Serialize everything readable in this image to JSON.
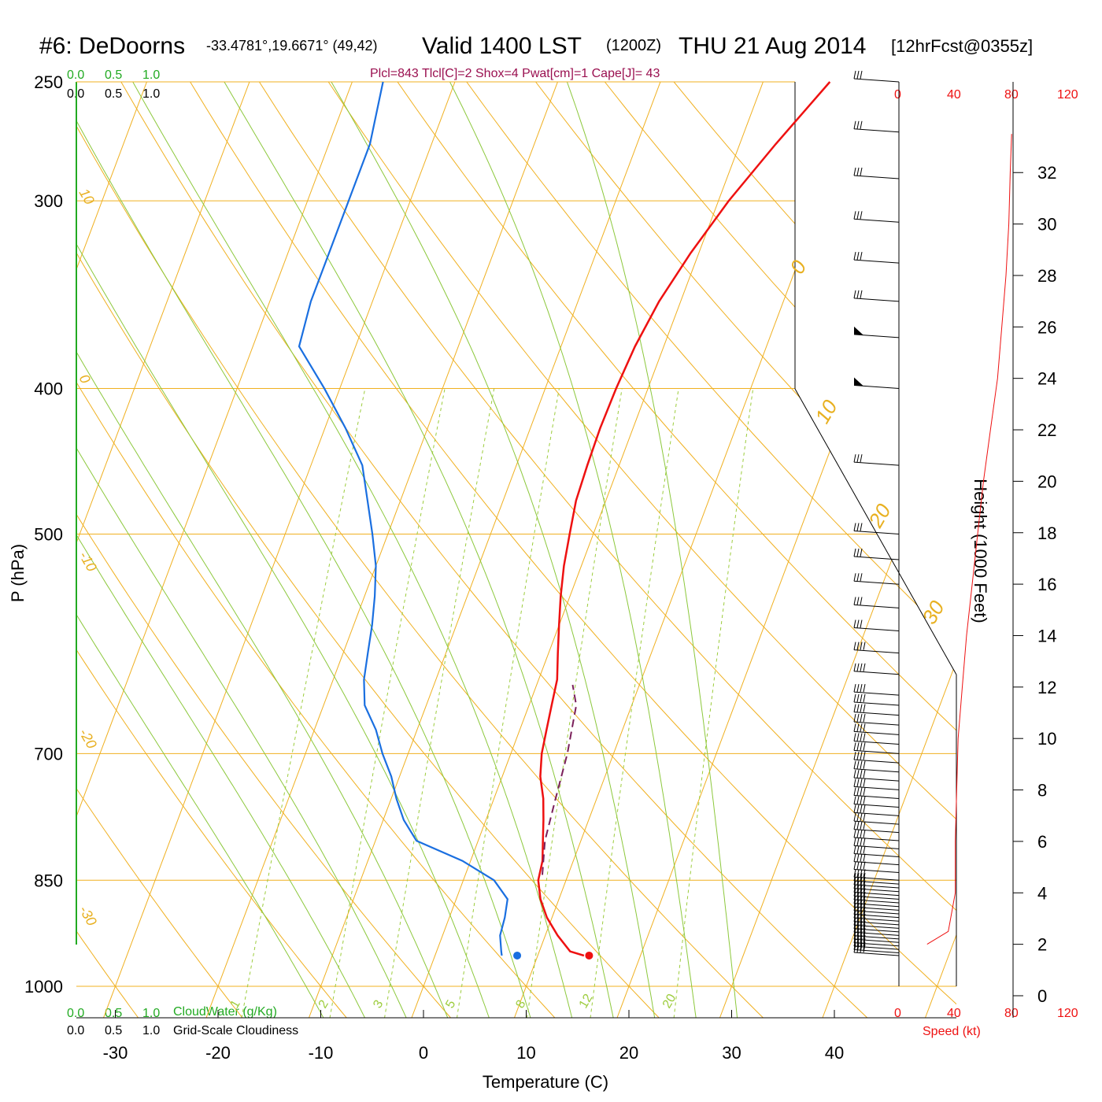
{
  "title": {
    "station": "#6: DeDoorns",
    "coords": "-33.4781°,19.6671° (49,42)",
    "valid_main": "Valid 1400 LST",
    "valid_utc": "(1200Z)",
    "date": "THU 21 Aug 2014",
    "forecast": "[12hrFcst@0355z]"
  },
  "indices": "Plcl=843 Tlcl[C]=2 Shox=4 Pwat[cm]=1 Cape[J]= 43",
  "cloud_scale_top": {
    "green": [
      "0.0",
      "0.5",
      "1.0"
    ],
    "black": [
      "0.0",
      "0.5",
      "1.0"
    ]
  },
  "cloud_scale_bottom": {
    "green": [
      "0.0",
      "0.5",
      "1.0"
    ],
    "green_label": "CloudWater (g/Kg)",
    "black": [
      "0.0",
      "0.5",
      "1.0"
    ],
    "black_label": "Grid-Scale Cloudiness"
  },
  "speed_axis": {
    "ticks_top": [
      "0",
      "40",
      "80",
      "120"
    ],
    "ticks_bottom": [
      "0",
      "40",
      "80",
      "120"
    ],
    "label": "Speed (kt)"
  },
  "colors": {
    "temperature": "#ee1111",
    "dewpoint": "#1a6fe0",
    "isotherm": "#f0b020",
    "dry_adiabat": "#f0b020",
    "moist_adiabat": "#8cc83c",
    "mixing_ratio": "#9ccc3c",
    "parcel": "#7a1f5a",
    "indices_text": "#9a1050",
    "cloud_green": "#22aa22",
    "speed_red": "#ee1111"
  },
  "chart_data": {
    "type": "skew-t",
    "xlabel": "Temperature (C)",
    "ylabel": "P (hPa)",
    "x_ticks": [
      -30,
      -20,
      -10,
      0,
      10,
      20,
      30,
      40
    ],
    "p_ticks": [
      250,
      300,
      400,
      500,
      700,
      850,
      1000
    ],
    "height_label": "Height (1000 Feet)",
    "height_ticks": [
      0,
      2,
      4,
      6,
      8,
      10,
      12,
      14,
      16,
      18,
      20,
      22,
      24,
      26,
      28,
      30,
      32
    ],
    "isotherm_labels": [
      "10",
      "0",
      "-10",
      "-20",
      "-30"
    ],
    "theta_labels": [
      "0",
      "10",
      "20",
      "30"
    ],
    "mixing_ratio_labels": [
      "1",
      "2",
      "3",
      "5",
      "8",
      "12",
      "20"
    ],
    "mixing_ratios": [
      1,
      2,
      3,
      5,
      8,
      12,
      20
    ],
    "temperature": [
      {
        "p": 954,
        "t": 14.5
      },
      {
        "p": 948,
        "t": 13.0
      },
      {
        "p": 925,
        "t": 11.2
      },
      {
        "p": 900,
        "t": 9.5
      },
      {
        "p": 875,
        "t": 8.2
      },
      {
        "p": 850,
        "t": 7.3
      },
      {
        "p": 825,
        "t": 7.0
      },
      {
        "p": 800,
        "t": 6.3
      },
      {
        "p": 775,
        "t": 5.6
      },
      {
        "p": 750,
        "t": 4.8
      },
      {
        "p": 725,
        "t": 3.7
      },
      {
        "p": 700,
        "t": 3.0
      },
      {
        "p": 675,
        "t": 2.6
      },
      {
        "p": 650,
        "t": 2.2
      },
      {
        "p": 625,
        "t": 1.8
      },
      {
        "p": 600,
        "t": 0.9
      },
      {
        "p": 575,
        "t": 0.0
      },
      {
        "p": 550,
        "t": -0.9
      },
      {
        "p": 525,
        "t": -1.7
      },
      {
        "p": 500,
        "t": -2.3
      },
      {
        "p": 475,
        "t": -2.9
      },
      {
        "p": 450,
        "t": -3.1
      },
      {
        "p": 425,
        "t": -3.2
      },
      {
        "p": 400,
        "t": -3.1
      },
      {
        "p": 375,
        "t": -2.8
      },
      {
        "p": 350,
        "t": -2.1
      },
      {
        "p": 325,
        "t": -0.8
      },
      {
        "p": 300,
        "t": 1.0
      },
      {
        "p": 275,
        "t": 3.5
      },
      {
        "p": 250,
        "t": 6.5
      }
    ],
    "dewpoint": [
      {
        "p": 954,
        "t": 6.5
      },
      {
        "p": 948,
        "t": 6.3
      },
      {
        "p": 925,
        "t": 5.6
      },
      {
        "p": 900,
        "t": 5.4
      },
      {
        "p": 875,
        "t": 5.0
      },
      {
        "p": 850,
        "t": 3.0
      },
      {
        "p": 825,
        "t": -0.8
      },
      {
        "p": 800,
        "t": -6.0
      },
      {
        "p": 775,
        "t": -8.0
      },
      {
        "p": 750,
        "t": -9.5
      },
      {
        "p": 725,
        "t": -10.8
      },
      {
        "p": 700,
        "t": -12.5
      },
      {
        "p": 675,
        "t": -14.0
      },
      {
        "p": 650,
        "t": -16.0
      },
      {
        "p": 625,
        "t": -17.0
      },
      {
        "p": 600,
        "t": -17.6
      },
      {
        "p": 575,
        "t": -18.2
      },
      {
        "p": 550,
        "t": -19.0
      },
      {
        "p": 525,
        "t": -20.0
      },
      {
        "p": 500,
        "t": -21.5
      },
      {
        "p": 475,
        "t": -23.2
      },
      {
        "p": 450,
        "t": -25.0
      },
      {
        "p": 425,
        "t": -28.0
      },
      {
        "p": 400,
        "t": -31.5
      },
      {
        "p": 375,
        "t": -35.5
      },
      {
        "p": 350,
        "t": -36.0
      },
      {
        "p": 325,
        "t": -36.0
      },
      {
        "p": 300,
        "t": -36.0
      },
      {
        "p": 275,
        "t": -36.0
      },
      {
        "p": 250,
        "t": -37.0
      }
    ],
    "surface_temperature": {
      "p": 954,
      "t": 15.0
    },
    "surface_dewpoint": {
      "p": 954,
      "t": 8.0
    },
    "parcel": [
      {
        "p": 843,
        "t": 7.5
      },
      {
        "p": 800,
        "t": 6.5
      },
      {
        "p": 750,
        "t": 6.0
      },
      {
        "p": 700,
        "t": 5.5
      },
      {
        "p": 650,
        "t": 4.6
      },
      {
        "p": 630,
        "t": 3.5
      }
    ],
    "wind_speed_profile": [
      {
        "z": 2.0,
        "spd": 20
      },
      {
        "z": 2.5,
        "spd": 35
      },
      {
        "z": 4,
        "spd": 40
      },
      {
        "z": 6,
        "spd": 40
      },
      {
        "z": 8,
        "spd": 41
      },
      {
        "z": 10,
        "spd": 42
      },
      {
        "z": 12,
        "spd": 45
      },
      {
        "z": 14,
        "spd": 48
      },
      {
        "z": 16,
        "spd": 52
      },
      {
        "z": 18,
        "spd": 56
      },
      {
        "z": 20,
        "spd": 60
      },
      {
        "z": 22,
        "spd": 65
      },
      {
        "z": 24,
        "spd": 70
      },
      {
        "z": 26,
        "spd": 73
      },
      {
        "z": 28,
        "spd": 76
      },
      {
        "z": 30,
        "spd": 78
      },
      {
        "z": 32,
        "spd": 79
      },
      {
        "z": 33.5,
        "spd": 80
      }
    ],
    "barb_levels": [
      954,
      950,
      945,
      940,
      935,
      930,
      925,
      920,
      915,
      910,
      905,
      900,
      895,
      890,
      885,
      880,
      875,
      870,
      865,
      860,
      855,
      850,
      840,
      830,
      820,
      810,
      800,
      790,
      780,
      770,
      760,
      750,
      740,
      730,
      720,
      710,
      700,
      690,
      680,
      670,
      660,
      650,
      640,
      620,
      600,
      580,
      560,
      540,
      520,
      500,
      450,
      400,
      370,
      350,
      330,
      310,
      290,
      270,
      250
    ]
  }
}
